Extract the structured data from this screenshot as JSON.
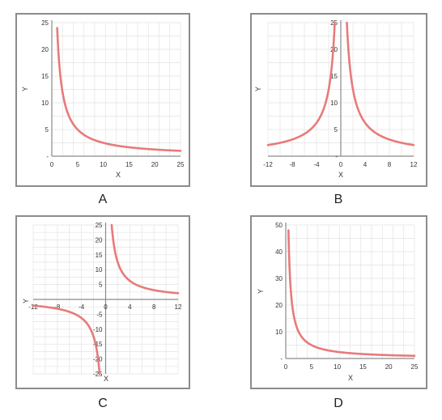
{
  "colors": {
    "curve": "#e87a7a",
    "grid": "#e3e3e3",
    "axis": "#8a8a8a",
    "frame": "#8c8c8c"
  },
  "chart_data": [
    {
      "id": "A",
      "type": "line",
      "caption": "A",
      "xlabel": "X",
      "ylabel": "Y",
      "xlim": [
        0,
        25
      ],
      "ylim": [
        0,
        25
      ],
      "xticks": [
        "0",
        "5",
        "10",
        "15",
        "20",
        "25"
      ],
      "yticks": [
        "-",
        "5",
        "10",
        "15",
        "20",
        "25"
      ],
      "series": [
        {
          "function": "y = 25/x",
          "x": [
            1,
            1.5,
            2,
            3,
            4,
            5,
            7,
            10,
            15,
            20,
            25
          ],
          "y": [
            25,
            16.7,
            12.5,
            8.3,
            6.25,
            5,
            3.6,
            2.5,
            1.7,
            1.25,
            1
          ]
        }
      ]
    },
    {
      "id": "B",
      "type": "line",
      "caption": "B",
      "xlabel": "X",
      "ylabel": "Y",
      "xlim": [
        -12,
        12
      ],
      "ylim": [
        0,
        25
      ],
      "xticks": [
        "-12",
        "-8",
        "-4",
        "0",
        "4",
        "8",
        "12"
      ],
      "yticks": [
        "-",
        "5",
        "10",
        "15",
        "20",
        "25"
      ],
      "series": [
        {
          "function": "y = 25/|x|",
          "x": [
            -12,
            -8,
            -4,
            -2,
            -1,
            1,
            2,
            4,
            8,
            12
          ],
          "y": [
            2.1,
            3.1,
            6.25,
            12.5,
            25,
            25,
            12.5,
            6.25,
            3.1,
            2.1
          ]
        }
      ]
    },
    {
      "id": "C",
      "type": "line",
      "caption": "C",
      "xlabel": "X",
      "ylabel": "Y",
      "xlim": [
        -12,
        12
      ],
      "ylim": [
        -25,
        25
      ],
      "xticks": [
        "-12",
        "-8",
        "-4",
        "0",
        "4",
        "8",
        "12"
      ],
      "yticks": [
        "-25",
        "-20",
        "-15",
        "-10",
        "-5",
        "5",
        "10",
        "15",
        "20",
        "25"
      ],
      "series": [
        {
          "function": "y = 25/x",
          "x": [
            -12,
            -8,
            -4,
            -2,
            -1,
            1,
            2,
            4,
            8,
            12
          ],
          "y": [
            -2.1,
            -3.1,
            -6.25,
            -12.5,
            -25,
            25,
            12.5,
            6.25,
            3.1,
            2.1
          ]
        }
      ]
    },
    {
      "id": "D",
      "type": "line",
      "caption": "D",
      "xlabel": "X",
      "ylabel": "Y",
      "xlim": [
        0,
        25
      ],
      "ylim": [
        0,
        50
      ],
      "xticks": [
        "0",
        "5",
        "10",
        "15",
        "20",
        "25"
      ],
      "yticks": [
        "-",
        "10",
        "20",
        "30",
        "40",
        "50"
      ],
      "series": [
        {
          "function": "y = 25/x",
          "x": [
            0.5,
            1,
            2,
            3,
            5,
            10,
            15,
            20,
            25
          ],
          "y": [
            50,
            25,
            12.5,
            8.3,
            5,
            2.5,
            1.7,
            1.25,
            1
          ]
        }
      ]
    }
  ]
}
